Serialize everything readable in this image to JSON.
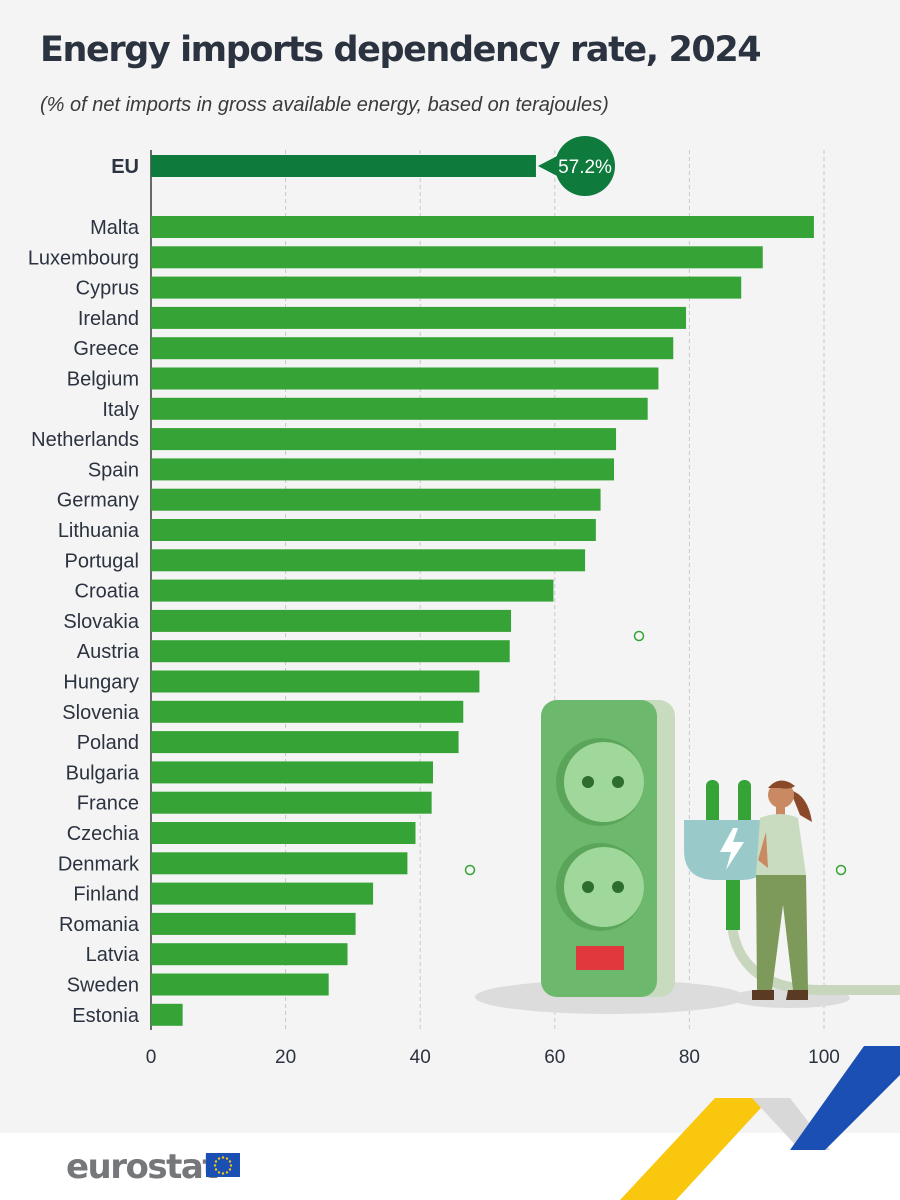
{
  "title": "Energy imports dependency rate, 2024",
  "subtitle": "(% of net imports in gross available energy, based on terajoules)",
  "footer": {
    "logo": "eurostat"
  },
  "colors": {
    "eu_bar": "#0e7a3c",
    "country_bar": "#35a335",
    "callout": "#0e7a3c"
  },
  "chart_data": {
    "type": "bar",
    "orientation": "horizontal",
    "xlim": [
      0,
      100
    ],
    "xticks": [
      "0",
      "20",
      "40",
      "60",
      "80",
      "100"
    ],
    "grid": "dashed vertical",
    "highlight": {
      "category": "EU",
      "value": 57.2,
      "label": "57.2%"
    },
    "categories": [
      "Malta",
      "Luxembourg",
      "Cyprus",
      "Ireland",
      "Greece",
      "Belgium",
      "Italy",
      "Netherlands",
      "Spain",
      "Germany",
      "Lithuania",
      "Portugal",
      "Croatia",
      "Slovakia",
      "Austria",
      "Hungary",
      "Slovenia",
      "Poland",
      "Bulgaria",
      "France",
      "Czechia",
      "Denmark",
      "Finland",
      "Romania",
      "Latvia",
      "Sweden",
      "Estonia"
    ],
    "values": [
      98.5,
      90.9,
      87.7,
      79.5,
      77.6,
      75.4,
      73.8,
      69.1,
      68.8,
      66.8,
      66.1,
      64.5,
      59.8,
      53.5,
      53.3,
      48.8,
      46.4,
      45.7,
      41.9,
      41.7,
      39.3,
      38.1,
      33.0,
      30.4,
      29.2,
      26.4,
      4.7
    ]
  }
}
